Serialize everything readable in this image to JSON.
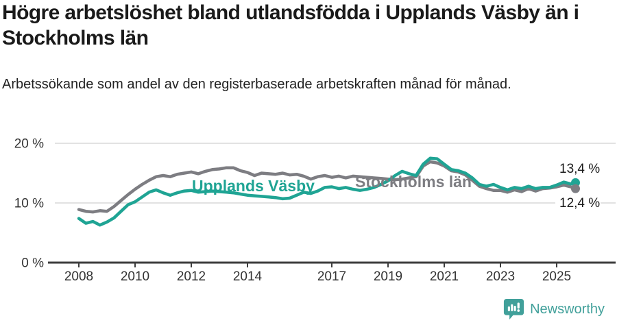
{
  "header": {
    "title": "Högre arbetslöshet bland utlandsfödda i Upplands Väsby än i Stockholms län",
    "subtitle": "Arbetssökande som andel av den registerbaserade arbetskraften månad för månad."
  },
  "chart_data": {
    "type": "line",
    "title": "",
    "xlabel": "",
    "ylabel": "",
    "ylim": [
      0,
      20
    ],
    "x_range": [
      2008.0,
      2025.67
    ],
    "grid": "horizontal-gridlines-at-10-and-20",
    "legend_position": "inline-labels-on-lines",
    "y_ticks": [
      {
        "value": 0,
        "label": "0 %"
      },
      {
        "value": 10,
        "label": "10 %"
      },
      {
        "value": 20,
        "label": "20 %"
      }
    ],
    "x_ticks": [
      {
        "value": 2008,
        "label": "2008"
      },
      {
        "value": 2010,
        "label": "2010"
      },
      {
        "value": 2012,
        "label": "2012"
      },
      {
        "value": 2014,
        "label": "2014"
      },
      {
        "value": 2017,
        "label": "2017"
      },
      {
        "value": 2019,
        "label": "2019"
      },
      {
        "value": 2021,
        "label": "2021"
      },
      {
        "value": 2023,
        "label": "2023"
      },
      {
        "value": 2025,
        "label": "2025"
      }
    ],
    "x": [
      2008.0,
      2008.25,
      2008.5,
      2008.75,
      2009.0,
      2009.25,
      2009.5,
      2009.75,
      2010.0,
      2010.25,
      2010.5,
      2010.75,
      2011.0,
      2011.25,
      2011.5,
      2011.75,
      2012.0,
      2012.25,
      2012.5,
      2012.75,
      2013.0,
      2013.25,
      2013.5,
      2013.75,
      2014.0,
      2014.25,
      2014.5,
      2014.75,
      2015.0,
      2015.25,
      2015.5,
      2015.75,
      2016.0,
      2016.25,
      2016.5,
      2016.75,
      2017.0,
      2017.25,
      2017.5,
      2017.75,
      2018.0,
      2018.25,
      2018.5,
      2018.75,
      2019.0,
      2019.25,
      2019.5,
      2019.75,
      2020.0,
      2020.25,
      2020.5,
      2020.75,
      2021.0,
      2021.25,
      2021.5,
      2021.75,
      2022.0,
      2022.25,
      2022.5,
      2022.75,
      2023.0,
      2023.25,
      2023.5,
      2023.75,
      2024.0,
      2024.25,
      2024.5,
      2024.75,
      2025.0,
      2025.25,
      2025.5,
      2025.67
    ],
    "series": [
      {
        "name": "Upplands Väsby",
        "color": "#1fa494",
        "end_label": "13,4 %",
        "end_value": 13.4,
        "values": [
          7.4,
          6.6,
          6.9,
          6.3,
          6.8,
          7.5,
          8.6,
          9.7,
          10.2,
          11.0,
          11.8,
          12.2,
          11.7,
          11.3,
          11.7,
          12.0,
          12.1,
          11.8,
          11.9,
          12.0,
          11.9,
          11.8,
          11.7,
          11.5,
          11.3,
          11.2,
          11.1,
          11.0,
          10.9,
          10.7,
          10.8,
          11.3,
          11.8,
          11.6,
          12.0,
          12.6,
          12.7,
          12.4,
          12.6,
          12.3,
          12.1,
          12.3,
          12.6,
          13.1,
          13.7,
          14.6,
          15.3,
          14.9,
          14.6,
          16.5,
          17.5,
          17.4,
          16.5,
          15.6,
          15.4,
          15.0,
          14.2,
          13.1,
          12.8,
          13.1,
          12.6,
          12.2,
          12.6,
          12.4,
          12.8,
          12.4,
          12.6,
          12.6,
          13.0,
          13.5,
          13.2,
          13.4
        ]
      },
      {
        "name": "Stockholms län",
        "color": "#7d7d82",
        "end_label": "12,4 %",
        "end_value": 12.4,
        "values": [
          8.9,
          8.6,
          8.5,
          8.7,
          8.6,
          9.4,
          10.4,
          11.4,
          12.3,
          13.1,
          13.8,
          14.4,
          14.6,
          14.4,
          14.8,
          15.0,
          15.2,
          14.9,
          15.3,
          15.6,
          15.7,
          15.9,
          15.9,
          15.4,
          15.1,
          14.6,
          15.0,
          14.9,
          14.8,
          15.0,
          14.7,
          14.8,
          14.5,
          14.0,
          14.4,
          14.6,
          14.3,
          14.5,
          14.2,
          14.5,
          14.4,
          14.3,
          14.2,
          14.1,
          14.0,
          13.9,
          14.0,
          14.2,
          14.4,
          16.2,
          16.9,
          16.7,
          16.2,
          15.4,
          15.2,
          14.7,
          13.8,
          12.8,
          12.4,
          12.1,
          12.1,
          11.8,
          12.2,
          11.9,
          12.4,
          12.0,
          12.4,
          12.5,
          12.7,
          13.0,
          12.7,
          12.4
        ]
      }
    ]
  },
  "footer": {
    "brand": "Newsworthy",
    "logo_icon": "bar-chart-speech-bubble-icon"
  },
  "colors": {
    "teal_series": "#1fa494",
    "gray_series": "#7d7d82",
    "gridline": "#d9d9d9",
    "axis": "#3d3d3d",
    "tick_label": "#333333",
    "title_text": "#1a1a1a",
    "logo_teal": "#41a09a"
  }
}
